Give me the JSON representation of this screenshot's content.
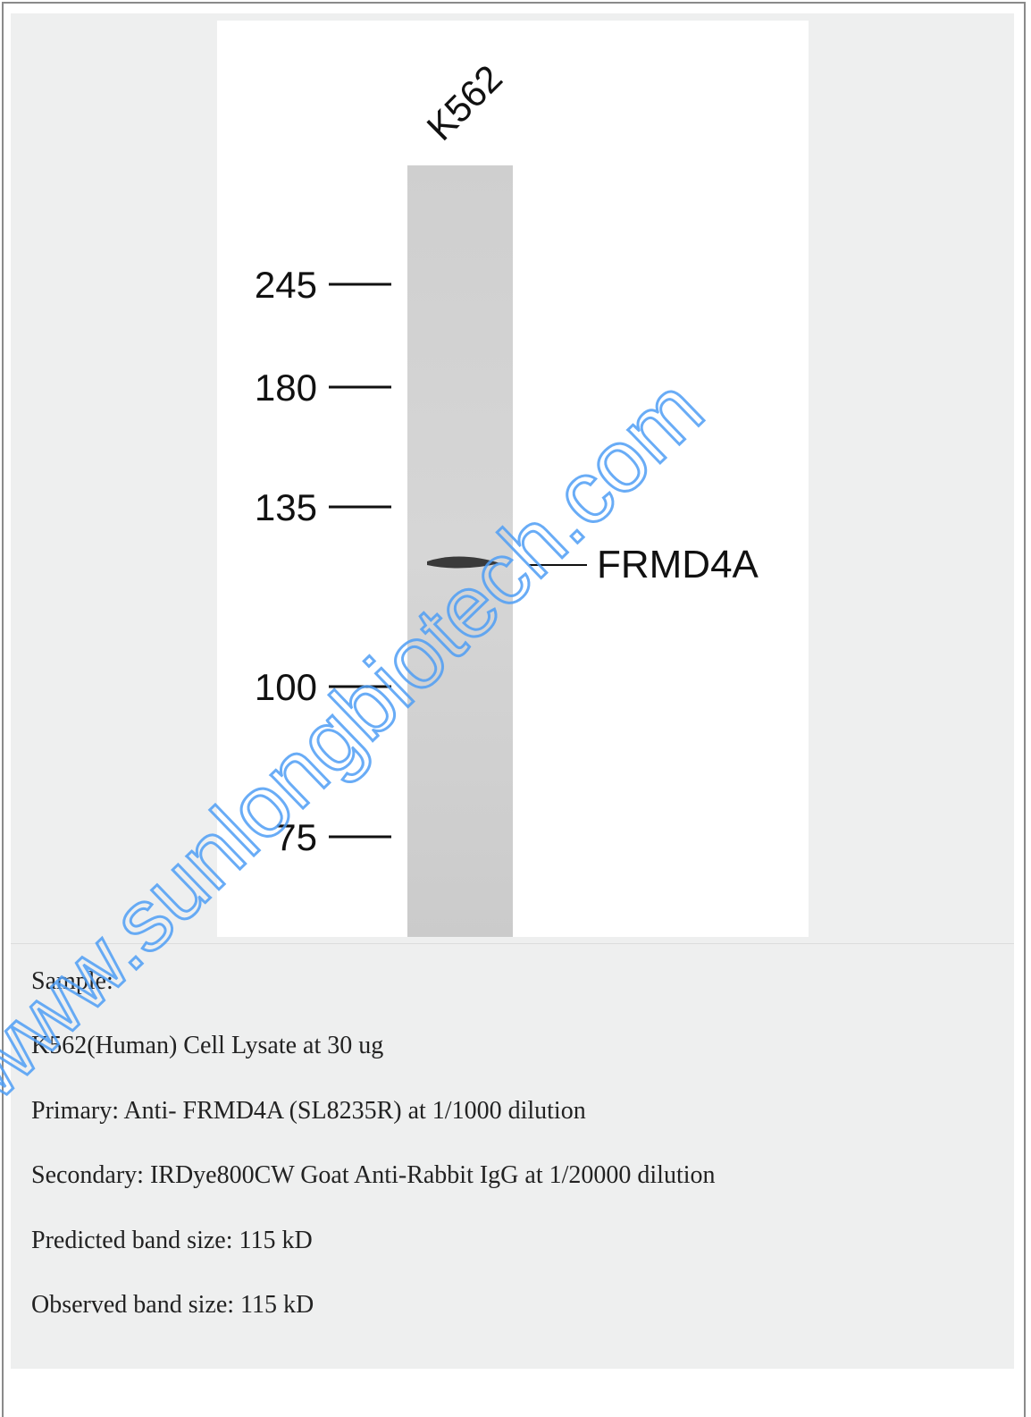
{
  "blot": {
    "lane_label": "K562",
    "markers": [
      "245",
      "180",
      "135",
      "100",
      "75"
    ],
    "band_label": "FRMD4A"
  },
  "watermark": "www.sunlongbiotech.com",
  "caption": [
    "Sample:",
    "K562(Human) Cell Lysate at 30 ug",
    "Primary: Anti- FRMD4A (SL8235R) at 1/1000 dilution",
    "Secondary: IRDye800CW Goat Anti-Rabbit IgG at 1/20000 dilution",
    "Predicted band size: 115 kD",
    "Observed band size: 115 kD"
  ]
}
